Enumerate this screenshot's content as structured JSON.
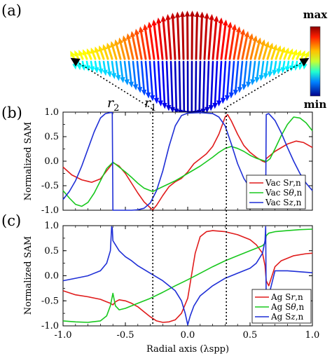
{
  "panel_labels": [
    "(a)",
    "(b)",
    "(c)"
  ],
  "colorbar": {
    "max_label": "max",
    "min_label": "min"
  },
  "radius_labels": {
    "r2": "r",
    "r2_sub": "2",
    "r1": "r",
    "r1_sub": "1"
  },
  "marker_x": [
    -0.28,
    0.31
  ],
  "colors": {
    "r": "#e01b1b",
    "theta": "#18c81e",
    "z": "#1f2fd6"
  },
  "chart_data": [
    {
      "type": "line",
      "panel": "(b)",
      "ylabel": "Normalized SAM",
      "xlabel": "",
      "xlim": [
        -1.0,
        1.0
      ],
      "ylim": [
        -1.0,
        1.0
      ],
      "y_ticks": [
        "1.0",
        "0.5",
        "0.0",
        "-0.5",
        "-1.0"
      ],
      "legend_position": "bottom-right",
      "series": [
        {
          "name": "Vac Sr,n",
          "name_plain": "Vac S",
          "name_italic": "r",
          "name_tail": ",n",
          "color": "#e01b1b",
          "points": [
            [
              -1.0,
              -0.12
            ],
            [
              -0.93,
              -0.28
            ],
            [
              -0.85,
              -0.38
            ],
            [
              -0.77,
              -0.43
            ],
            [
              -0.7,
              -0.36
            ],
            [
              -0.62,
              -0.1
            ],
            [
              -0.6,
              -0.03
            ],
            [
              -0.55,
              -0.1
            ],
            [
              -0.5,
              -0.25
            ],
            [
              -0.45,
              -0.45
            ],
            [
              -0.4,
              -0.65
            ],
            [
              -0.35,
              -0.83
            ],
            [
              -0.3,
              -0.95
            ],
            [
              -0.28,
              -0.99
            ],
            [
              -0.25,
              -0.9
            ],
            [
              -0.2,
              -0.7
            ],
            [
              -0.15,
              -0.52
            ],
            [
              -0.1,
              -0.42
            ],
            [
              -0.05,
              -0.35
            ],
            [
              0.0,
              -0.22
            ],
            [
              0.05,
              -0.05
            ],
            [
              0.1,
              0.05
            ],
            [
              0.15,
              0.15
            ],
            [
              0.2,
              0.3
            ],
            [
              0.25,
              0.55
            ],
            [
              0.3,
              0.9
            ],
            [
              0.32,
              0.95
            ],
            [
              0.35,
              0.82
            ],
            [
              0.4,
              0.55
            ],
            [
              0.45,
              0.32
            ],
            [
              0.5,
              0.18
            ],
            [
              0.55,
              0.08
            ],
            [
              0.6,
              0.0
            ],
            [
              0.62,
              -0.02
            ],
            [
              0.63,
              0.05
            ],
            [
              0.7,
              0.2
            ],
            [
              0.8,
              0.35
            ],
            [
              0.87,
              0.41
            ],
            [
              0.93,
              0.38
            ],
            [
              1.0,
              0.28
            ]
          ]
        },
        {
          "name": "Vac Sθ,n",
          "name_plain": "Vac S",
          "name_italic": "θ",
          "name_tail": ",n",
          "color": "#18c81e",
          "points": [
            [
              -1.0,
              -0.6
            ],
            [
              -0.95,
              -0.75
            ],
            [
              -0.9,
              -0.88
            ],
            [
              -0.85,
              -0.92
            ],
            [
              -0.8,
              -0.84
            ],
            [
              -0.75,
              -0.65
            ],
            [
              -0.7,
              -0.4
            ],
            [
              -0.65,
              -0.15
            ],
            [
              -0.6,
              -0.02
            ],
            [
              -0.55,
              -0.12
            ],
            [
              -0.5,
              -0.22
            ],
            [
              -0.45,
              -0.33
            ],
            [
              -0.4,
              -0.45
            ],
            [
              -0.35,
              -0.55
            ],
            [
              -0.3,
              -0.6
            ],
            [
              -0.28,
              -0.62
            ],
            [
              -0.25,
              -0.58
            ],
            [
              -0.2,
              -0.52
            ],
            [
              -0.1,
              -0.4
            ],
            [
              0.0,
              -0.25
            ],
            [
              0.1,
              -0.1
            ],
            [
              0.2,
              0.08
            ],
            [
              0.25,
              0.18
            ],
            [
              0.3,
              0.26
            ],
            [
              0.35,
              0.3
            ],
            [
              0.4,
              0.26
            ],
            [
              0.45,
              0.2
            ],
            [
              0.5,
              0.12
            ],
            [
              0.55,
              0.06
            ],
            [
              0.6,
              0.02
            ],
            [
              0.62,
              0.0
            ],
            [
              0.63,
              -0.01
            ],
            [
              0.66,
              0.05
            ],
            [
              0.7,
              0.25
            ],
            [
              0.75,
              0.52
            ],
            [
              0.8,
              0.75
            ],
            [
              0.85,
              0.9
            ],
            [
              0.9,
              0.88
            ],
            [
              0.95,
              0.78
            ],
            [
              1.0,
              0.62
            ]
          ]
        },
        {
          "name": "Vac Sz,n",
          "name_plain": "Vac S",
          "name_italic": "z",
          "name_tail": ",n",
          "color": "#1f2fd6",
          "points": [
            [
              -1.0,
              -0.78
            ],
            [
              -0.95,
              -0.62
            ],
            [
              -0.9,
              -0.4
            ],
            [
              -0.85,
              -0.1
            ],
            [
              -0.8,
              0.25
            ],
            [
              -0.75,
              0.6
            ],
            [
              -0.7,
              0.88
            ],
            [
              -0.66,
              0.97
            ],
            [
              -0.62,
              0.99
            ],
            [
              -0.605,
              0.99
            ],
            [
              -0.6,
              -1.0
            ],
            [
              -0.56,
              -1.0
            ],
            [
              -0.5,
              -1.0
            ],
            [
              -0.45,
              -1.0
            ],
            [
              -0.4,
              -0.99
            ],
            [
              -0.35,
              -0.96
            ],
            [
              -0.3,
              -0.85
            ],
            [
              -0.25,
              -0.6
            ],
            [
              -0.2,
              -0.2
            ],
            [
              -0.15,
              0.3
            ],
            [
              -0.1,
              0.72
            ],
            [
              -0.05,
              0.93
            ],
            [
              0.0,
              0.98
            ],
            [
              0.1,
              0.99
            ],
            [
              0.2,
              0.97
            ],
            [
              0.25,
              0.9
            ],
            [
              0.3,
              0.72
            ],
            [
              0.35,
              0.35
            ],
            [
              0.4,
              -0.05
            ],
            [
              0.45,
              -0.35
            ],
            [
              0.5,
              -0.55
            ],
            [
              0.55,
              -0.72
            ],
            [
              0.6,
              -0.85
            ],
            [
              0.625,
              -0.9
            ],
            [
              0.63,
              0.95
            ],
            [
              0.65,
              0.97
            ],
            [
              0.7,
              0.83
            ],
            [
              0.75,
              0.58
            ],
            [
              0.8,
              0.28
            ],
            [
              0.85,
              0.0
            ],
            [
              0.9,
              -0.25
            ],
            [
              0.95,
              -0.45
            ],
            [
              1.0,
              -0.6
            ]
          ]
        }
      ]
    },
    {
      "type": "line",
      "panel": "(c)",
      "ylabel": "Normalized SAM",
      "xlabel": "Radial axis (λspp)",
      "xlim": [
        -1.0,
        1.0
      ],
      "ylim": [
        -1.0,
        1.0
      ],
      "x_ticks": [
        "-1.0",
        "-0.5",
        "0.0",
        "0.5",
        "1.0"
      ],
      "y_ticks": [
        "1.0",
        "0.5",
        "0.0",
        "-0.5",
        "-1.0"
      ],
      "legend_position": "bottom-right",
      "series": [
        {
          "name": "Ag Sr,n",
          "name_plain": "Ag S",
          "name_italic": "r",
          "name_tail": ",n",
          "color": "#e01b1b",
          "points": [
            [
              -1.0,
              -0.3
            ],
            [
              -0.9,
              -0.38
            ],
            [
              -0.8,
              -0.42
            ],
            [
              -0.7,
              -0.47
            ],
            [
              -0.65,
              -0.52
            ],
            [
              -0.62,
              -0.55
            ],
            [
              -0.6,
              -0.58
            ],
            [
              -0.58,
              -0.52
            ],
            [
              -0.55,
              -0.48
            ],
            [
              -0.5,
              -0.5
            ],
            [
              -0.45,
              -0.55
            ],
            [
              -0.4,
              -0.62
            ],
            [
              -0.35,
              -0.72
            ],
            [
              -0.3,
              -0.82
            ],
            [
              -0.25,
              -0.9
            ],
            [
              -0.2,
              -0.93
            ],
            [
              -0.15,
              -0.92
            ],
            [
              -0.1,
              -0.88
            ],
            [
              -0.05,
              -0.75
            ],
            [
              0.0,
              -0.45
            ],
            [
              0.03,
              0.0
            ],
            [
              0.06,
              0.45
            ],
            [
              0.1,
              0.78
            ],
            [
              0.15,
              0.88
            ],
            [
              0.2,
              0.9
            ],
            [
              0.3,
              0.88
            ],
            [
              0.4,
              0.82
            ],
            [
              0.5,
              0.72
            ],
            [
              0.55,
              0.62
            ],
            [
              0.6,
              0.45
            ],
            [
              0.62,
              0.2
            ],
            [
              0.63,
              -0.1
            ],
            [
              0.65,
              -0.2
            ],
            [
              0.7,
              0.18
            ],
            [
              0.75,
              0.3
            ],
            [
              0.85,
              0.4
            ],
            [
              0.95,
              0.44
            ],
            [
              1.0,
              0.45
            ]
          ]
        },
        {
          "name": "Ag Sθ,n",
          "name_plain": "Ag S",
          "name_italic": "θ",
          "name_tail": ",n",
          "color": "#18c81e",
          "points": [
            [
              -1.0,
              -0.9
            ],
            [
              -0.9,
              -0.92
            ],
            [
              -0.8,
              -0.93
            ],
            [
              -0.7,
              -0.9
            ],
            [
              -0.65,
              -0.8
            ],
            [
              -0.62,
              -0.6
            ],
            [
              -0.6,
              -0.35
            ],
            [
              -0.58,
              -0.6
            ],
            [
              -0.55,
              -0.68
            ],
            [
              -0.5,
              -0.65
            ],
            [
              -0.4,
              -0.55
            ],
            [
              -0.3,
              -0.45
            ],
            [
              -0.2,
              -0.33
            ],
            [
              -0.1,
              -0.2
            ],
            [
              0.0,
              -0.08
            ],
            [
              0.1,
              0.05
            ],
            [
              0.2,
              0.18
            ],
            [
              0.3,
              0.3
            ],
            [
              0.4,
              0.4
            ],
            [
              0.5,
              0.5
            ],
            [
              0.55,
              0.55
            ],
            [
              0.6,
              0.6
            ],
            [
              0.62,
              0.65
            ],
            [
              0.63,
              0.8
            ],
            [
              0.65,
              0.85
            ],
            [
              0.7,
              0.88
            ],
            [
              0.8,
              0.9
            ],
            [
              0.9,
              0.92
            ],
            [
              1.0,
              0.93
            ]
          ]
        },
        {
          "name": "Ag Sz,n",
          "name_plain": "Ag S",
          "name_italic": "z",
          "name_tail": ",n",
          "color": "#1f2fd6",
          "points": [
            [
              -1.0,
              -0.1
            ],
            [
              -0.9,
              -0.05
            ],
            [
              -0.8,
              0.0
            ],
            [
              -0.7,
              0.1
            ],
            [
              -0.65,
              0.25
            ],
            [
              -0.62,
              0.5
            ],
            [
              -0.61,
              0.98
            ],
            [
              -0.605,
              0.95
            ],
            [
              -0.6,
              0.7
            ],
            [
              -0.55,
              0.5
            ],
            [
              -0.5,
              0.38
            ],
            [
              -0.45,
              0.3
            ],
            [
              -0.4,
              0.2
            ],
            [
              -0.3,
              0.05
            ],
            [
              -0.2,
              -0.1
            ],
            [
              -0.1,
              -0.3
            ],
            [
              -0.05,
              -0.5
            ],
            [
              -0.02,
              -0.75
            ],
            [
              0.0,
              -0.98
            ],
            [
              0.02,
              -0.8
            ],
            [
              0.05,
              -0.6
            ],
            [
              0.1,
              -0.4
            ],
            [
              0.2,
              -0.2
            ],
            [
              0.3,
              -0.05
            ],
            [
              0.4,
              0.05
            ],
            [
              0.5,
              0.15
            ],
            [
              0.55,
              0.25
            ],
            [
              0.6,
              0.45
            ],
            [
              0.62,
              0.7
            ],
            [
              0.625,
              0.98
            ],
            [
              0.63,
              -0.6
            ],
            [
              0.64,
              -0.5
            ],
            [
              0.7,
              0.1
            ],
            [
              0.8,
              0.1
            ],
            [
              0.9,
              0.08
            ],
            [
              1.0,
              0.06
            ]
          ]
        }
      ]
    }
  ]
}
